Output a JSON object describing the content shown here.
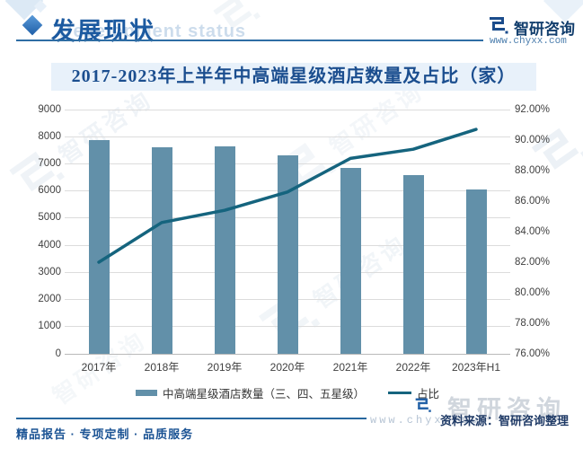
{
  "header": {
    "section_title": "发展现状",
    "section_subtitle_en": "Development status",
    "brand_name": "智研咨询",
    "brand_url": "www.chyxx.com"
  },
  "chart_data": {
    "type": "bar",
    "combo": "bar+line, dual axis",
    "title": "2017-2023年上半年中高端星级酒店数量及占比（家）",
    "categories": [
      "2017年",
      "2018年",
      "2019年",
      "2020年",
      "2021年",
      "2022年",
      "2023年H1"
    ],
    "series": [
      {
        "name": "中高端星级酒店数量（三、四、五星级）",
        "type": "bar",
        "axis": "left",
        "values": [
          7880,
          7600,
          7630,
          7300,
          6840,
          6580,
          6060
        ]
      },
      {
        "name": "占比",
        "type": "line",
        "axis": "right",
        "values": [
          82.0,
          84.6,
          85.4,
          86.6,
          88.8,
          89.4,
          90.7
        ]
      }
    ],
    "left_axis": {
      "min": 0,
      "max": 9000,
      "step": 1000,
      "tick_labels": [
        "0",
        "1000",
        "2000",
        "3000",
        "4000",
        "5000",
        "6000",
        "7000",
        "8000",
        "9000"
      ]
    },
    "right_axis": {
      "min": 76,
      "max": 92,
      "step": 2,
      "tick_labels": [
        "76.00%",
        "78.00%",
        "80.00%",
        "82.00%",
        "84.00%",
        "86.00%",
        "88.00%",
        "90.00%",
        "92.00%"
      ]
    },
    "grid": true,
    "legend_position": "bottom",
    "colors": {
      "bar": "#6290a9",
      "line": "#15647e"
    }
  },
  "footer": {
    "source": "资料来源：智研咨询整理",
    "tagline": "精品报告 · 专项定制 · 品质服务"
  },
  "watermark": {
    "text": "智研咨询",
    "url": "www.chyxx.com"
  }
}
